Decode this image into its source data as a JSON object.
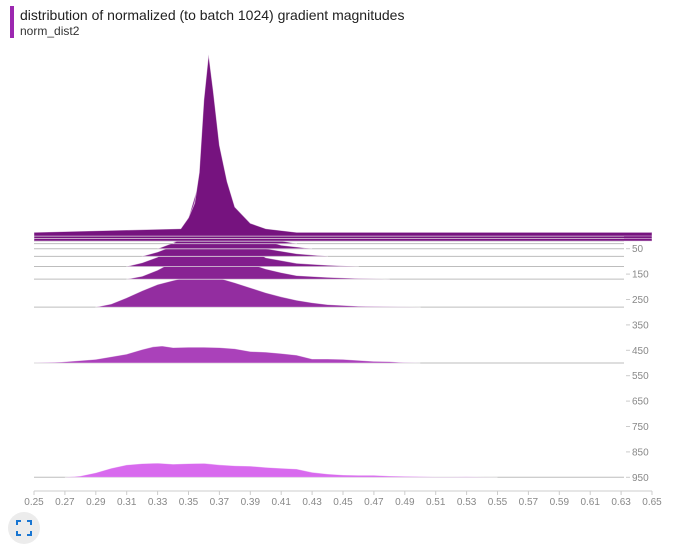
{
  "header": {
    "title": "distribution of normalized (to batch 1024) gradient magnitudes",
    "run": "norm_dist2"
  },
  "colors": {
    "accent": "#9c27b0",
    "newest": "#76137f",
    "oldest": "#dd6ff4"
  },
  "icons": {
    "fullscreen": "fullscreen-icon"
  },
  "chart_data": {
    "type": "area",
    "title": "distribution of normalized (to batch 1024) gradient magnitudes",
    "subtitle": "norm_dist2",
    "xlim": [
      0.25,
      0.65
    ],
    "x_ticks": [
      "0.25",
      "0.27",
      "0.29",
      "0.31",
      "0.33",
      "0.35",
      "0.37",
      "0.39",
      "0.41",
      "0.43",
      "0.45",
      "0.47",
      "0.49",
      "0.51",
      "0.53",
      "0.55",
      "0.57",
      "0.59",
      "0.61",
      "0.63",
      "0.65"
    ],
    "step_ticks": [
      "50",
      "150",
      "250",
      "350",
      "450",
      "550",
      "650",
      "750",
      "850",
      "950"
    ],
    "step_range": [
      0,
      1000
    ],
    "series": [
      {
        "step": 0,
        "peak": 5.5,
        "x": [
          0.25,
          0.345,
          0.35,
          0.354,
          0.357,
          0.36,
          0.363,
          0.366,
          0.37,
          0.375,
          0.38,
          0.39,
          0.4,
          0.42,
          0.65
        ],
        "y": [
          0.02,
          0.04,
          0.1,
          0.18,
          0.35,
          0.75,
          1.0,
          0.8,
          0.5,
          0.3,
          0.16,
          0.07,
          0.04,
          0.02,
          0.02
        ]
      },
      {
        "step": 10,
        "peak": 5.0,
        "x": [
          0.25,
          0.345,
          0.35,
          0.354,
          0.357,
          0.36,
          0.363,
          0.366,
          0.37,
          0.375,
          0.38,
          0.39,
          0.4,
          0.42,
          0.65
        ],
        "y": [
          0.02,
          0.04,
          0.1,
          0.18,
          0.35,
          0.75,
          1.0,
          0.8,
          0.5,
          0.3,
          0.16,
          0.07,
          0.04,
          0.02,
          0.02
        ]
      },
      {
        "step": 20,
        "peak": 4.6,
        "x": [
          0.25,
          0.345,
          0.35,
          0.354,
          0.357,
          0.36,
          0.363,
          0.366,
          0.37,
          0.375,
          0.38,
          0.39,
          0.4,
          0.42,
          0.65
        ],
        "y": [
          0.02,
          0.04,
          0.1,
          0.18,
          0.35,
          0.75,
          1.0,
          0.8,
          0.5,
          0.3,
          0.16,
          0.07,
          0.04,
          0.02,
          0.02
        ]
      },
      {
        "step": 30,
        "peak": 4.1,
        "x": [
          0.34,
          0.345,
          0.35,
          0.354,
          0.357,
          0.36,
          0.363,
          0.366,
          0.37,
          0.375,
          0.38,
          0.39,
          0.4,
          0.42
        ],
        "y": [
          0.0,
          0.04,
          0.1,
          0.18,
          0.35,
          0.75,
          1.0,
          0.8,
          0.5,
          0.3,
          0.16,
          0.07,
          0.04,
          0.0
        ]
      },
      {
        "step": 50,
        "peak": 3.5,
        "x": [
          0.33,
          0.34,
          0.345,
          0.35,
          0.355,
          0.36,
          0.365,
          0.37,
          0.375,
          0.38,
          0.39,
          0.4,
          0.41,
          0.43
        ],
        "y": [
          0.0,
          0.05,
          0.1,
          0.22,
          0.45,
          0.8,
          1.0,
          0.85,
          0.55,
          0.33,
          0.15,
          0.07,
          0.03,
          0.0
        ]
      },
      {
        "step": 80,
        "peak": 2.6,
        "x": [
          0.32,
          0.33,
          0.34,
          0.345,
          0.35,
          0.355,
          0.36,
          0.365,
          0.37,
          0.38,
          0.39,
          0.4,
          0.42,
          0.44
        ],
        "y": [
          0.0,
          0.05,
          0.12,
          0.25,
          0.45,
          0.75,
          1.0,
          0.9,
          0.65,
          0.35,
          0.18,
          0.09,
          0.03,
          0.0
        ]
      },
      {
        "step": 120,
        "peak": 1.9,
        "x": [
          0.31,
          0.32,
          0.33,
          0.34,
          0.35,
          0.355,
          0.36,
          0.37,
          0.38,
          0.39,
          0.4,
          0.42,
          0.44,
          0.46
        ],
        "y": [
          0.0,
          0.06,
          0.15,
          0.35,
          0.65,
          0.85,
          1.0,
          0.8,
          0.5,
          0.28,
          0.14,
          0.05,
          0.02,
          0.0
        ]
      },
      {
        "step": 170,
        "peak": 1.1,
        "x": [
          0.31,
          0.32,
          0.33,
          0.34,
          0.35,
          0.36,
          0.37,
          0.38,
          0.39,
          0.4,
          0.41,
          0.42,
          0.44,
          0.46,
          0.48
        ],
        "y": [
          0.0,
          0.08,
          0.25,
          0.48,
          0.8,
          1.0,
          0.85,
          0.62,
          0.42,
          0.28,
          0.18,
          0.1,
          0.05,
          0.02,
          0.0
        ]
      },
      {
        "step": 280,
        "peak": 0.95,
        "x": [
          0.29,
          0.3,
          0.31,
          0.32,
          0.33,
          0.34,
          0.35,
          0.36,
          0.37,
          0.38,
          0.39,
          0.4,
          0.41,
          0.42,
          0.43,
          0.44,
          0.46,
          0.48,
          0.5
        ],
        "y": [
          0.0,
          0.1,
          0.3,
          0.52,
          0.72,
          0.85,
          0.96,
          1.0,
          0.92,
          0.78,
          0.62,
          0.46,
          0.33,
          0.22,
          0.14,
          0.08,
          0.03,
          0.01,
          0.0
        ]
      },
      {
        "step": 500,
        "peak": 0.6,
        "x": [
          0.25,
          0.268,
          0.29,
          0.31,
          0.32,
          0.327,
          0.333,
          0.34,
          0.35,
          0.36,
          0.37,
          0.38,
          0.39,
          0.4,
          0.41,
          0.42,
          0.43,
          0.44,
          0.45,
          0.46,
          0.47,
          0.48,
          0.49,
          0.5
        ],
        "y": [
          0.0,
          0.05,
          0.18,
          0.45,
          0.68,
          0.82,
          0.86,
          0.78,
          0.8,
          0.8,
          0.78,
          0.72,
          0.58,
          0.55,
          0.48,
          0.4,
          0.2,
          0.2,
          0.18,
          0.13,
          0.08,
          0.07,
          0.02,
          0.0
        ]
      },
      {
        "step": 950,
        "peak": 0.5,
        "x": [
          0.27,
          0.28,
          0.29,
          0.3,
          0.31,
          0.32,
          0.33,
          0.34,
          0.35,
          0.36,
          0.37,
          0.38,
          0.39,
          0.4,
          0.41,
          0.42,
          0.43,
          0.44,
          0.45,
          0.46,
          0.47,
          0.48,
          0.49,
          0.5,
          0.51,
          0.52,
          0.53,
          0.54,
          0.55
        ],
        "y": [
          0.0,
          0.08,
          0.28,
          0.55,
          0.75,
          0.83,
          0.86,
          0.8,
          0.83,
          0.85,
          0.76,
          0.7,
          0.68,
          0.6,
          0.55,
          0.5,
          0.3,
          0.2,
          0.14,
          0.12,
          0.12,
          0.08,
          0.06,
          0.05,
          0.02,
          0.02,
          0.03,
          0.01,
          0.0
        ]
      }
    ]
  }
}
